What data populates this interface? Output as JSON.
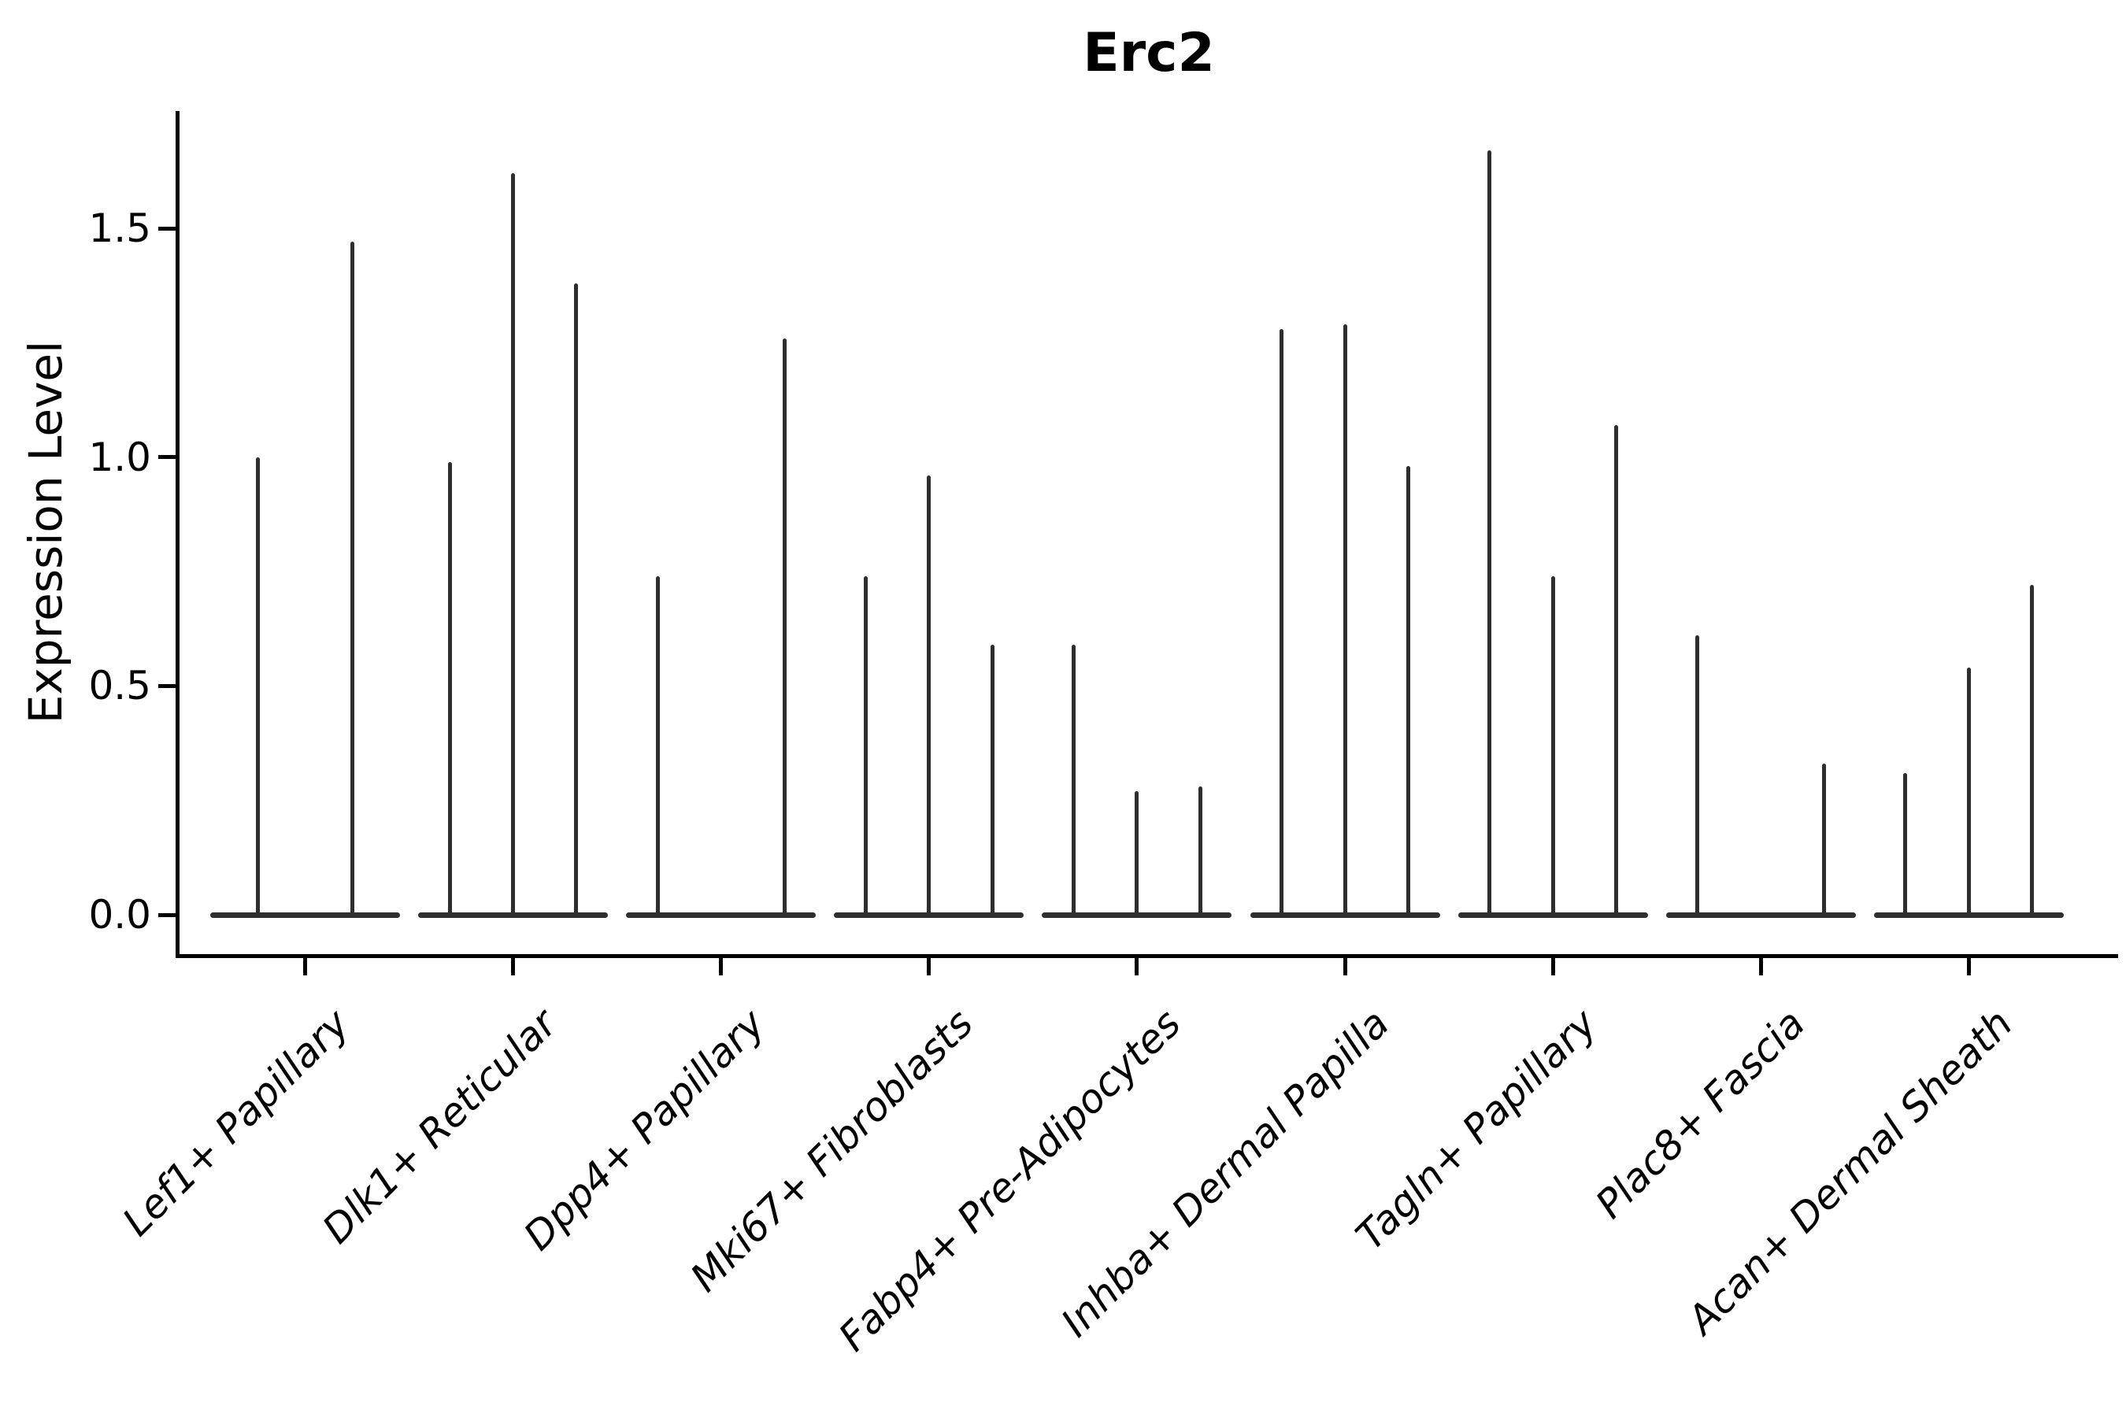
{
  "figure": {
    "background": "#ffffff",
    "axis_color": "#000000",
    "violin_color": "#2e2e2e"
  },
  "chart_data": {
    "type": "violin",
    "title": "Erc2",
    "xlabel": "",
    "ylabel": "Expression Level",
    "ylim": [
      -0.09,
      1.76
    ],
    "yticks": [
      0.0,
      0.5,
      1.0,
      1.5
    ],
    "ytick_labels": [
      "0.0",
      "0.5",
      "1.0",
      "1.5"
    ],
    "grid": false,
    "legend": "none",
    "categories": [
      "Lef1+ Papillary",
      "Dlk1+ Reticular",
      "Dpp4+ Papillary",
      "Mki67+ Fibroblasts",
      "Fabp4+ Pre-Adipocytes",
      "Inhba+ Dermal Papilla",
      "Tagln+ Papillary",
      "Plac8+ Fascia",
      "Acan+ Dermal Sheath"
    ],
    "groups": [
      {
        "label": "Lef1+ Papillary",
        "violin_peaks": [
          1.0,
          1.47
        ]
      },
      {
        "label": "Dlk1+ Reticular",
        "violin_peaks": [
          0.99,
          1.62,
          1.38
        ]
      },
      {
        "label": "Dpp4+ Papillary",
        "violin_peaks": [
          0.74,
          0.0,
          1.26
        ]
      },
      {
        "label": "Mki67+ Fibroblasts",
        "violin_peaks": [
          0.74,
          0.96,
          0.59
        ]
      },
      {
        "label": "Fabp4+ Pre-Adipocytes",
        "violin_peaks": [
          0.59,
          0.27,
          0.28
        ]
      },
      {
        "label": "Inhba+ Dermal Papilla",
        "violin_peaks": [
          1.28,
          1.29,
          0.98
        ]
      },
      {
        "label": "Tagln+ Papillary",
        "violin_peaks": [
          1.67,
          0.74,
          1.07
        ]
      },
      {
        "label": "Plac8+ Fascia",
        "violin_peaks": [
          0.61,
          0.0,
          0.33
        ]
      },
      {
        "label": "Acan+ Dermal Sheath",
        "violin_peaks": [
          0.31,
          0.54,
          0.72
        ]
      }
    ]
  }
}
